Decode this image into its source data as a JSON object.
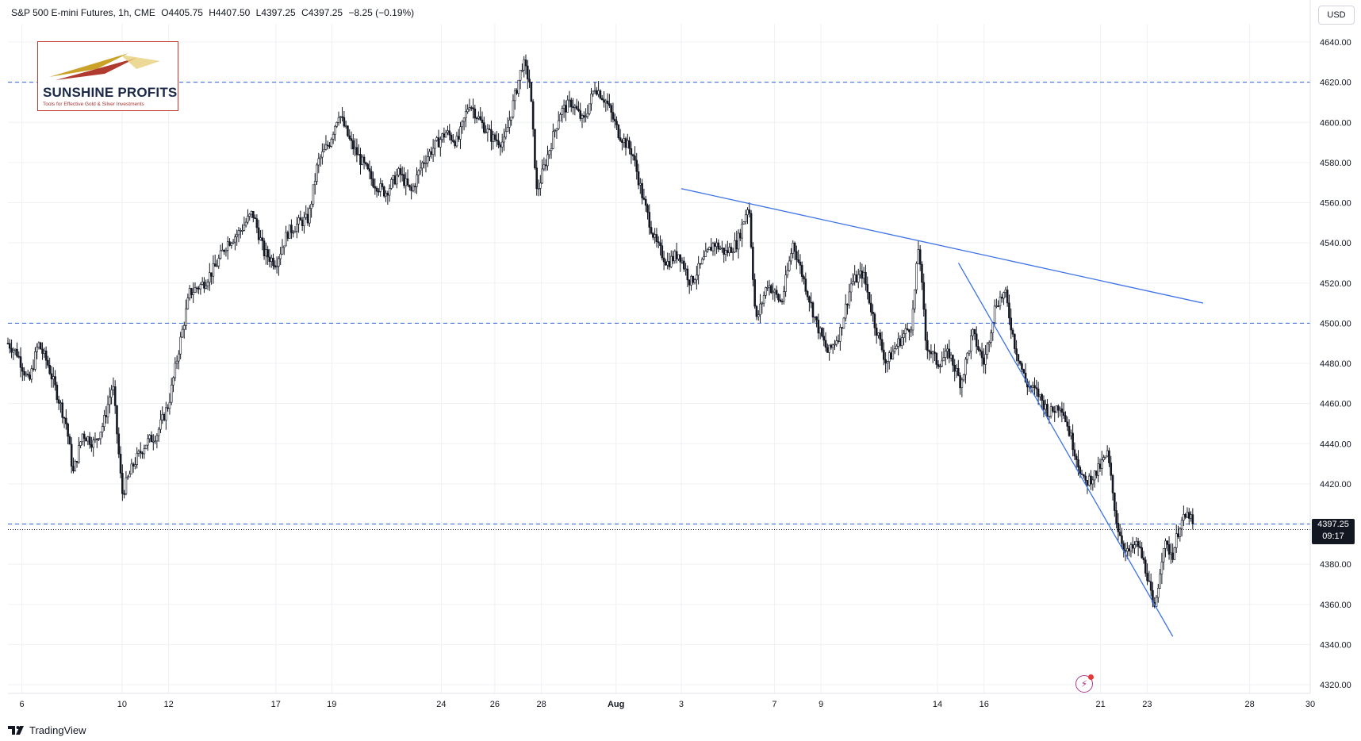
{
  "header": {
    "symbol": "S&P 500 E-mini Futures, 1h, CME",
    "open": "O4405.75",
    "high": "H4407.50",
    "low": "L4397.25",
    "close": "C4397.25",
    "change": "−8.25 (−0.19%)"
  },
  "currency": "USD",
  "logo": {
    "name": "SUNSHINE PROFITS",
    "tagline": "Tools for Effective Gold & Silver Investments"
  },
  "footer": {
    "brand": "TradingView"
  },
  "last_price": {
    "value": "4397.25",
    "countdown": "09:17"
  },
  "colors": {
    "candle": "#131722",
    "trendline": "#3d72e8",
    "hline": "#2f5fd6",
    "grid": "#eef0f3",
    "logo_border": "#c0392b"
  },
  "chart_data": {
    "type": "candlestick",
    "title": "S&P 500 E-mini Futures, 1h, CME",
    "ylim": [
      4310,
      4650
    ],
    "y_ticks": [
      4320,
      4340,
      4360,
      4380,
      4400,
      4420,
      4440,
      4460,
      4480,
      4500,
      4520,
      4540,
      4560,
      4580,
      4600,
      4620,
      4640
    ],
    "y_tick_labels": [
      "4320.00",
      "4340.00",
      "4360.00",
      "4380.00",
      "4400.00",
      "4420.00",
      "4440.00",
      "4460.00",
      "4480.00",
      "4500.00",
      "4520.00",
      "4540.00",
      "4560.00",
      "4580.00",
      "4600.00",
      "4620.00",
      "4640.00"
    ],
    "x_tick_labels": [
      "6",
      "10",
      "12",
      "17",
      "19",
      "24",
      "26",
      "28",
      "Aug",
      "3",
      "7",
      "9",
      "14",
      "16",
      "21",
      "23",
      "28",
      "30"
    ],
    "x_tick_days": [
      5.7,
      10,
      12,
      16.6,
      19,
      23.7,
      26,
      28,
      31.2,
      34,
      38,
      40,
      45,
      47,
      52,
      54,
      58.4,
      61
    ],
    "x_range_days": [
      5.1,
      61
    ],
    "horizontal_levels": [
      4620,
      4500,
      4400
    ],
    "trendlines": [
      {
        "from": [
          34,
          4567
        ],
        "to": [
          56.4,
          4510
        ]
      },
      {
        "from": [
          45.9,
          4530
        ],
        "to": [
          55.1,
          4344
        ]
      }
    ],
    "price_path": [
      [
        5.1,
        4490
      ],
      [
        5.5,
        4485
      ],
      [
        6.0,
        4470
      ],
      [
        6.4,
        4490
      ],
      [
        6.8,
        4480
      ],
      [
        7.2,
        4465
      ],
      [
        7.6,
        4450
      ],
      [
        7.9,
        4425
      ],
      [
        8.3,
        4445
      ],
      [
        8.8,
        4440
      ],
      [
        9.2,
        4450
      ],
      [
        9.6,
        4470
      ],
      [
        10.0,
        4415
      ],
      [
        10.5,
        4430
      ],
      [
        11.0,
        4440
      ],
      [
        11.5,
        4445
      ],
      [
        12.0,
        4460
      ],
      [
        12.4,
        4485
      ],
      [
        12.9,
        4515
      ],
      [
        13.5,
        4520
      ],
      [
        14.0,
        4528
      ],
      [
        14.5,
        4540
      ],
      [
        15.0,
        4545
      ],
      [
        15.6,
        4555
      ],
      [
        16.1,
        4535
      ],
      [
        16.6,
        4530
      ],
      [
        17.1,
        4545
      ],
      [
        17.6,
        4550
      ],
      [
        18.0,
        4552
      ],
      [
        18.4,
        4580
      ],
      [
        18.9,
        4590
      ],
      [
        19.3,
        4605
      ],
      [
        19.8,
        4590
      ],
      [
        20.3,
        4580
      ],
      [
        20.8,
        4570
      ],
      [
        21.3,
        4565
      ],
      [
        21.9,
        4575
      ],
      [
        22.4,
        4565
      ],
      [
        22.9,
        4580
      ],
      [
        23.4,
        4588
      ],
      [
        23.9,
        4595
      ],
      [
        24.4,
        4590
      ],
      [
        24.9,
        4610
      ],
      [
        25.4,
        4600
      ],
      [
        25.9,
        4592
      ],
      [
        26.4,
        4590
      ],
      [
        26.9,
        4615
      ],
      [
        27.2,
        4630
      ],
      [
        27.5,
        4620
      ],
      [
        27.8,
        4565
      ],
      [
        28.3,
        4585
      ],
      [
        28.8,
        4605
      ],
      [
        29.3,
        4610
      ],
      [
        29.8,
        4600
      ],
      [
        30.3,
        4618
      ],
      [
        30.8,
        4610
      ],
      [
        31.3,
        4595
      ],
      [
        31.9,
        4585
      ],
      [
        32.4,
        4560
      ],
      [
        32.9,
        4540
      ],
      [
        33.4,
        4530
      ],
      [
        33.9,
        4535
      ],
      [
        34.4,
        4520
      ],
      [
        34.9,
        4530
      ],
      [
        35.4,
        4540
      ],
      [
        35.9,
        4535
      ],
      [
        36.4,
        4540
      ],
      [
        36.9,
        4560
      ],
      [
        37.2,
        4500
      ],
      [
        37.7,
        4520
      ],
      [
        38.3,
        4510
      ],
      [
        38.8,
        4540
      ],
      [
        39.3,
        4520
      ],
      [
        39.8,
        4500
      ],
      [
        40.3,
        4485
      ],
      [
        40.8,
        4495
      ],
      [
        41.3,
        4520
      ],
      [
        41.8,
        4525
      ],
      [
        42.3,
        4500
      ],
      [
        42.8,
        4480
      ],
      [
        43.3,
        4490
      ],
      [
        43.9,
        4500
      ],
      [
        44.2,
        4540
      ],
      [
        44.5,
        4490
      ],
      [
        45.0,
        4480
      ],
      [
        45.5,
        4485
      ],
      [
        46.0,
        4470
      ],
      [
        46.5,
        4495
      ],
      [
        47.0,
        4480
      ],
      [
        47.5,
        4510
      ],
      [
        47.9,
        4515
      ],
      [
        48.3,
        4490
      ],
      [
        48.8,
        4470
      ],
      [
        49.3,
        4465
      ],
      [
        49.8,
        4455
      ],
      [
        50.3,
        4460
      ],
      [
        50.8,
        4440
      ],
      [
        51.3,
        4420
      ],
      [
        51.8,
        4425
      ],
      [
        52.3,
        4435
      ],
      [
        52.7,
        4400
      ],
      [
        53.1,
        4385
      ],
      [
        53.6,
        4390
      ],
      [
        54.0,
        4375
      ],
      [
        54.3,
        4355
      ],
      [
        54.7,
        4390
      ],
      [
        55.1,
        4385
      ],
      [
        55.4,
        4400
      ],
      [
        55.8,
        4405
      ],
      [
        56.0,
        4397
      ]
    ]
  }
}
